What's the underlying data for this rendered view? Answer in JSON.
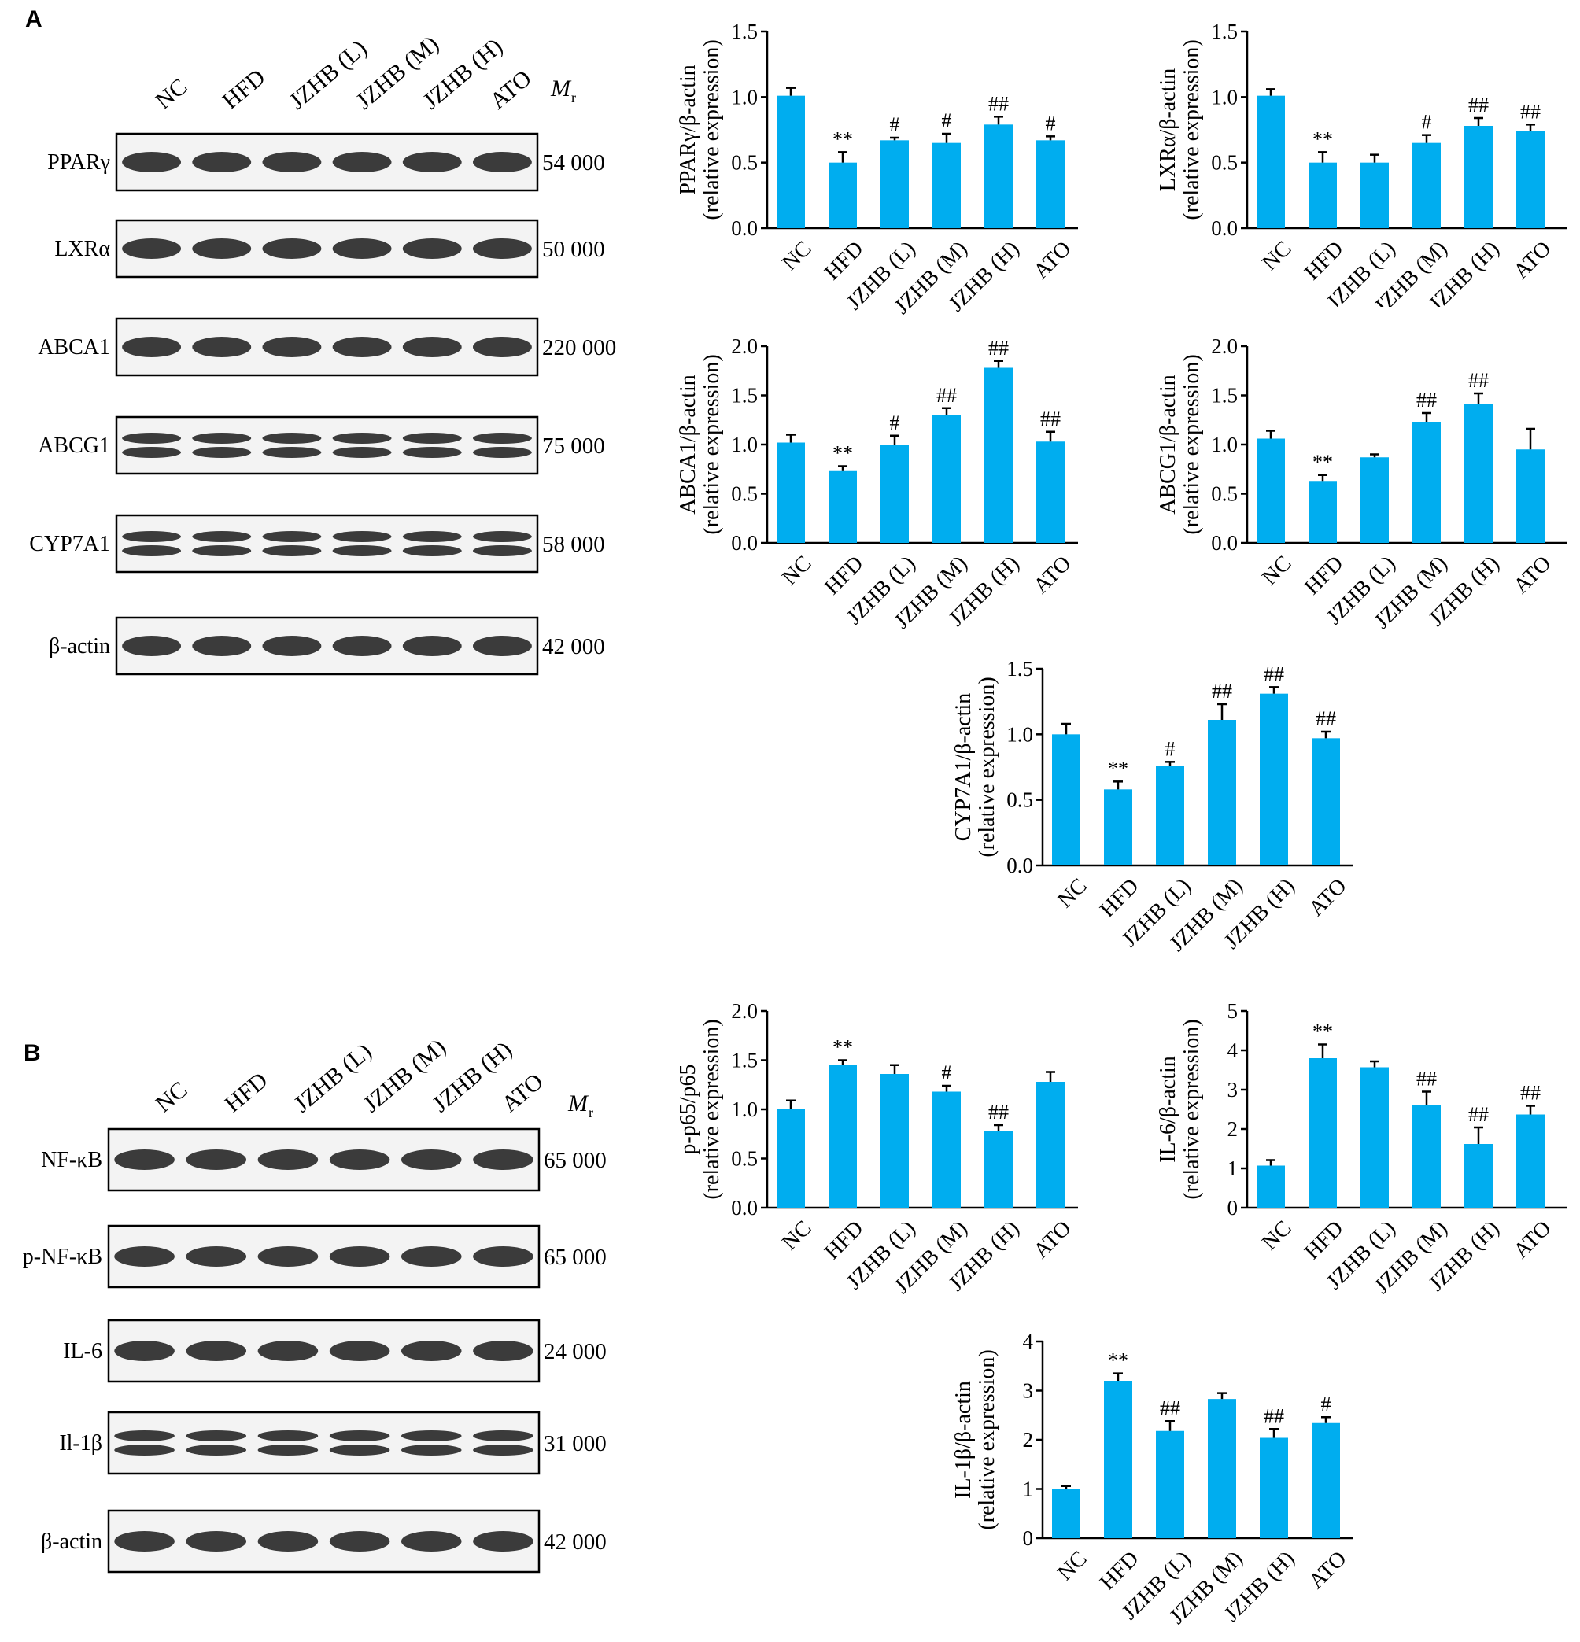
{
  "panels": [
    {
      "letter": "A",
      "mr_label": "M",
      "mr_sub": "r",
      "lanes": [
        "NC",
        "HFD",
        "JZHB (L)",
        "JZHB (M)",
        "JZHB (H)",
        "ATO"
      ],
      "blots": [
        {
          "protein": "PPARγ",
          "mw": "54 000"
        },
        {
          "protein": "LXRα",
          "mw": "50 000"
        },
        {
          "protein": "ABCA1",
          "mw": "220 000"
        },
        {
          "protein": "ABCG1",
          "mw": "75 000"
        },
        {
          "protein": "CYP7A1",
          "mw": "58 000"
        },
        {
          "protein": "β-actin",
          "mw": "42 000"
        }
      ]
    },
    {
      "letter": "B",
      "mr_label": "M",
      "mr_sub": "r",
      "lanes": [
        "NC",
        "HFD",
        "JZHB (L)",
        "JZHB (M)",
        "JZHB (H)",
        "ATO"
      ],
      "blots": [
        {
          "protein": "NF-κB",
          "mw": "65 000"
        },
        {
          "protein": "p-NF-κB",
          "mw": "65 000"
        },
        {
          "protein": "IL-6",
          "mw": "24 000"
        },
        {
          "protein": "Il-1β",
          "mw": "31 000"
        },
        {
          "protein": "β-actin",
          "mw": "42 000"
        }
      ]
    }
  ],
  "chart_data": [
    {
      "type": "bar",
      "ylabel": [
        "PPARγ/β-actin",
        "(relative expression)"
      ],
      "categories": [
        "NC",
        "HFD",
        "JZHB (L)",
        "JZHB (M)",
        "JZHB (H)",
        "ATO"
      ],
      "values": [
        1.01,
        0.5,
        0.67,
        0.65,
        0.79,
        0.67
      ],
      "errors": [
        0.06,
        0.08,
        0.02,
        0.07,
        0.06,
        0.03
      ],
      "significance": [
        "",
        "**",
        "#",
        "#",
        "##",
        "#"
      ],
      "ylim": [
        0,
        1.5
      ],
      "yticks": [
        "0.0",
        "0.5",
        "1.0",
        "1.5"
      ],
      "color": "#00adef"
    },
    {
      "type": "bar",
      "ylabel": [
        "LXRα/β-actin",
        "(relative expression)"
      ],
      "categories": [
        "NC",
        "HFD",
        "JZHB (L)",
        "JZHB (M)",
        "JZHB (H)",
        "ATO"
      ],
      "values": [
        1.01,
        0.5,
        0.5,
        0.65,
        0.78,
        0.74
      ],
      "errors": [
        0.05,
        0.08,
        0.06,
        0.06,
        0.06,
        0.05
      ],
      "significance": [
        "",
        "**",
        "",
        "#",
        "##",
        "##"
      ],
      "ylim": [
        0,
        1.5
      ],
      "yticks": [
        "0.0",
        "0.5",
        "1.0",
        "1.5"
      ],
      "color": "#00adef"
    },
    {
      "type": "bar",
      "ylabel": [
        "ABCA1/β-actin",
        "(relative expression)"
      ],
      "categories": [
        "NC",
        "HFD",
        "JZHB (L)",
        "JZHB (M)",
        "JZHB (H)",
        "ATO"
      ],
      "values": [
        1.02,
        0.73,
        1.0,
        1.3,
        1.78,
        1.03
      ],
      "errors": [
        0.08,
        0.05,
        0.09,
        0.07,
        0.07,
        0.1
      ],
      "significance": [
        "",
        "**",
        "#",
        "##",
        "##",
        "##"
      ],
      "ylim": [
        0,
        2.0
      ],
      "yticks": [
        "0.0",
        "0.5",
        "1.0",
        "1.5",
        "2.0"
      ],
      "color": "#00adef"
    },
    {
      "type": "bar",
      "ylabel": [
        "ABCG1/β-actin",
        "(relative expression)"
      ],
      "categories": [
        "NC",
        "HFD",
        "JZHB (L)",
        "JZHB (M)",
        "JZHB (H)",
        "ATO"
      ],
      "values": [
        1.06,
        0.63,
        0.87,
        1.23,
        1.41,
        0.95
      ],
      "errors": [
        0.08,
        0.06,
        0.03,
        0.09,
        0.11,
        0.21
      ],
      "significance": [
        "",
        "**",
        "",
        "##",
        "##",
        ""
      ],
      "ylim": [
        0,
        2.0
      ],
      "yticks": [
        "0.0",
        "0.5",
        "1.0",
        "1.5",
        "2.0"
      ],
      "color": "#00adef"
    },
    {
      "type": "bar",
      "ylabel": [
        "CYP7A1/β-actin",
        "(relative expression)"
      ],
      "categories": [
        "NC",
        "HFD",
        "JZHB (L)",
        "JZHB (M)",
        "JZHB (H)",
        "ATO"
      ],
      "values": [
        1.0,
        0.58,
        0.76,
        1.11,
        1.31,
        0.97
      ],
      "errors": [
        0.08,
        0.06,
        0.03,
        0.12,
        0.05,
        0.05
      ],
      "significance": [
        "",
        "**",
        "#",
        "##",
        "##",
        "##"
      ],
      "ylim": [
        0,
        1.5
      ],
      "yticks": [
        "0.0",
        "0.5",
        "1.0",
        "1.5"
      ],
      "color": "#00adef"
    },
    {
      "type": "bar",
      "ylabel": [
        "p-p65/p65",
        "(relative expression)"
      ],
      "categories": [
        "NC",
        "HFD",
        "JZHB (L)",
        "JZHB (M)",
        "JZHB (H)",
        "ATO"
      ],
      "values": [
        1.0,
        1.45,
        1.36,
        1.18,
        0.78,
        1.28
      ],
      "errors": [
        0.09,
        0.05,
        0.09,
        0.06,
        0.06,
        0.1
      ],
      "significance": [
        "",
        "**",
        "",
        "#",
        "##",
        ""
      ],
      "ylim": [
        0,
        2.0
      ],
      "yticks": [
        "0.0",
        "0.5",
        "1.0",
        "1.5",
        "2.0"
      ],
      "color": "#00adef"
    },
    {
      "type": "bar",
      "ylabel": [
        "IL-6/β-actin",
        "(relative expression)"
      ],
      "categories": [
        "NC",
        "HFD",
        "JZHB (L)",
        "JZHB (M)",
        "JZHB (H)",
        "ATO"
      ],
      "values": [
        1.07,
        3.8,
        3.57,
        2.6,
        1.62,
        2.37
      ],
      "errors": [
        0.14,
        0.35,
        0.15,
        0.35,
        0.42,
        0.22
      ],
      "significance": [
        "",
        "**",
        "",
        "##",
        "##",
        "##"
      ],
      "ylim": [
        0,
        5
      ],
      "yticks": [
        "0",
        "1",
        "2",
        "3",
        "4",
        "5"
      ],
      "color": "#00adef"
    },
    {
      "type": "bar",
      "ylabel": [
        "IL-1β/β-actin",
        "(relative expression)"
      ],
      "categories": [
        "NC",
        "HFD",
        "JZHB (L)",
        "JZHB (M)",
        "JZHB (H)",
        "ATO"
      ],
      "values": [
        1.0,
        3.2,
        2.18,
        2.83,
        2.04,
        2.34
      ],
      "errors": [
        0.06,
        0.15,
        0.2,
        0.12,
        0.18,
        0.12
      ],
      "significance": [
        "",
        "**",
        "##",
        "",
        "##",
        "#"
      ],
      "ylim": [
        0,
        4
      ],
      "yticks": [
        "0",
        "1",
        "2",
        "3",
        "4"
      ],
      "color": "#00adef"
    }
  ]
}
